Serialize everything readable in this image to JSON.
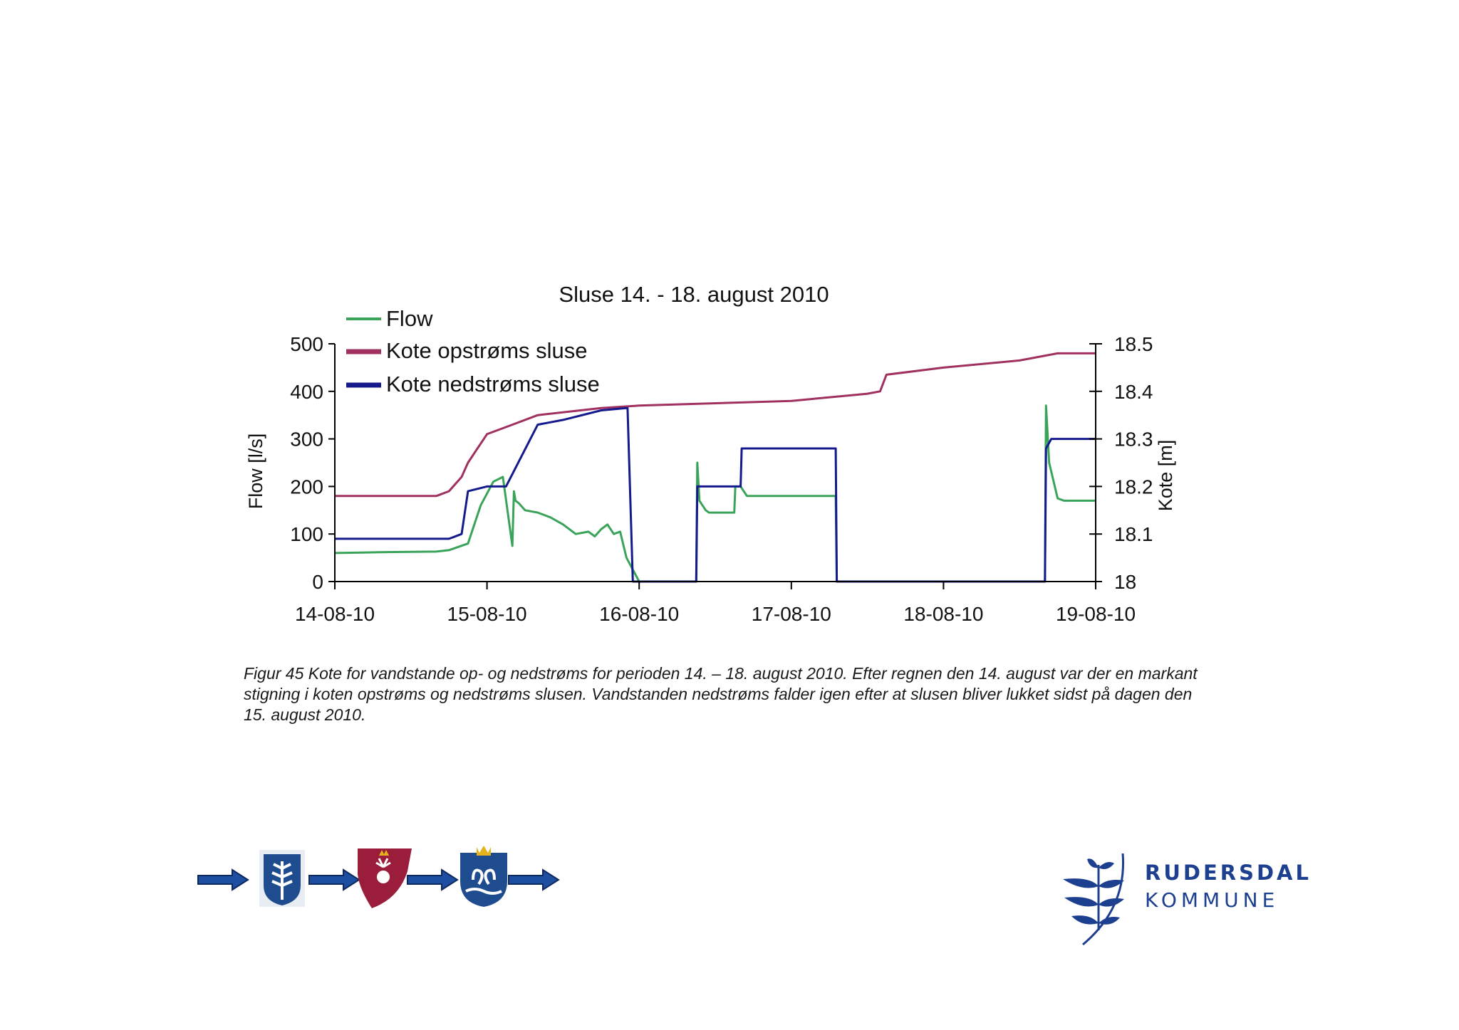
{
  "colors": {
    "flow": "#3aa35a",
    "upstream": "#a0305f",
    "downstream": "#141a8c",
    "axis": "#000000",
    "logo": "#1d3f8f"
  },
  "chart_data": {
    "type": "line",
    "title": "Sluse 14. - 18. august 2010",
    "ylabel": "Flow [l/s]",
    "y2label": "Kote [m]",
    "xlabel": "",
    "xlim": [
      "2010-08-14",
      "2010-08-19"
    ],
    "ylim": [
      0,
      500
    ],
    "y2lim": [
      18,
      18.5
    ],
    "x_ticks": [
      "14-08-10",
      "15-08-10",
      "16-08-10",
      "17-08-10",
      "18-08-10",
      "19-08-10"
    ],
    "y_ticks": [
      "0",
      "100",
      "200",
      "300",
      "400",
      "500"
    ],
    "y2_ticks": [
      "18",
      "18.1",
      "18.2",
      "18.3",
      "18.4",
      "18.5"
    ],
    "grid": false,
    "legend_position": "top-left",
    "series": [
      {
        "name": "Flow",
        "axis": "left",
        "color": "#3aa35a",
        "x": [
          "2010-08-14 00:00",
          "2010-08-14 08:00",
          "2010-08-14 16:00",
          "2010-08-14 18:00",
          "2010-08-14 21:00",
          "2010-08-14 23:00",
          "2010-08-15 01:00",
          "2010-08-15 02:30",
          "2010-08-15 04:00",
          "2010-08-15 04:15",
          "2010-08-15 04:30",
          "2010-08-15 05:00",
          "2010-08-15 06:00",
          "2010-08-15 08:00",
          "2010-08-15 10:00",
          "2010-08-15 12:00",
          "2010-08-15 14:00",
          "2010-08-15 16:00",
          "2010-08-15 17:00",
          "2010-08-15 18:00",
          "2010-08-15 19:00",
          "2010-08-15 20:00",
          "2010-08-15 21:00",
          "2010-08-15 22:00",
          "2010-08-16 00:00",
          "2010-08-16 09:00",
          "2010-08-16 09:10",
          "2010-08-16 09:30",
          "2010-08-16 10:30",
          "2010-08-16 11:00",
          "2010-08-16 15:00",
          "2010-08-16 15:10",
          "2010-08-16 16:00",
          "2010-08-16 17:00",
          "2010-08-16 20:00",
          "2010-08-17 07:00",
          "2010-08-17 07:10",
          "2010-08-18 16:00",
          "2010-08-18 16:10",
          "2010-08-18 16:40",
          "2010-08-18 18:00",
          "2010-08-18 19:00",
          "2010-08-19 00:00"
        ],
        "y": [
          60,
          62,
          63,
          66,
          80,
          160,
          210,
          220,
          75,
          190,
          170,
          165,
          150,
          145,
          135,
          120,
          100,
          105,
          95,
          110,
          120,
          100,
          105,
          50,
          0,
          0,
          250,
          170,
          150,
          145,
          145,
          200,
          200,
          180,
          180,
          180,
          0,
          0,
          370,
          250,
          175,
          170,
          170
        ]
      },
      {
        "name": "Kote opstrøms sluse",
        "axis": "right",
        "color": "#a0305f",
        "x": [
          "2010-08-14 00:00",
          "2010-08-14 08:00",
          "2010-08-14 16:00",
          "2010-08-14 18:00",
          "2010-08-14 20:00",
          "2010-08-14 21:00",
          "2010-08-15 00:00",
          "2010-08-15 04:00",
          "2010-08-15 08:00",
          "2010-08-15 18:00",
          "2010-08-16 00:00",
          "2010-08-17 00:00",
          "2010-08-17 08:00",
          "2010-08-17 12:00",
          "2010-08-17 14:00",
          "2010-08-17 15:00",
          "2010-08-18 00:00",
          "2010-08-18 12:00",
          "2010-08-18 18:00",
          "2010-08-19 00:00"
        ],
        "y": [
          18.18,
          18.18,
          18.18,
          18.19,
          18.22,
          18.25,
          18.31,
          18.33,
          18.35,
          18.365,
          18.37,
          18.38,
          18.39,
          18.395,
          18.4,
          18.435,
          18.45,
          18.465,
          18.48,
          18.48
        ]
      },
      {
        "name": "Kote nedstrøms sluse",
        "axis": "right",
        "color": "#141a8c",
        "x": [
          "2010-08-14 00:00",
          "2010-08-14 12:00",
          "2010-08-14 18:00",
          "2010-08-14 20:00",
          "2010-08-14 21:00",
          "2010-08-15 00:00",
          "2010-08-15 03:00",
          "2010-08-15 08:00",
          "2010-08-15 12:00",
          "2010-08-15 18:00",
          "2010-08-15 22:00",
          "2010-08-15 22:10",
          "2010-08-15 23:00",
          "2010-08-16 09:00",
          "2010-08-16 09:10",
          "2010-08-16 16:00",
          "2010-08-16 16:10",
          "2010-08-17 07:00",
          "2010-08-17 07:10",
          "2010-08-18 16:00",
          "2010-08-18 16:10",
          "2010-08-18 17:00",
          "2010-08-19 00:00"
        ],
        "y": [
          18.09,
          18.09,
          18.09,
          18.1,
          18.19,
          18.2,
          18.2,
          18.33,
          18.34,
          18.36,
          18.365,
          18.365,
          18.0,
          18.0,
          18.2,
          18.2,
          18.28,
          18.28,
          18.0,
          18.0,
          18.28,
          18.3,
          18.3
        ]
      }
    ],
    "caption": "Figur 45 Kote for vandstande op- og nedstrøms for perioden 14. – 18. august 2010. Efter regnen den 14. august var der en markant stigning i koten opstrøms og nedstrøms slusen. Vandstanden nedstrøms falder igen efter at slusen bliver lukket sidst på dagen den 15. august 2010."
  },
  "footer": {
    "chain_icons": [
      "arrow-right-icon",
      "shield-branch-icon",
      "arrow-right-icon",
      "shield-deer-icon",
      "arrow-right-icon",
      "shield-swans-icon",
      "arrow-right-icon"
    ]
  },
  "logo": {
    "name": "RUDERSDAL",
    "sub": "KOMMUNE",
    "icon": "branch-icon"
  }
}
